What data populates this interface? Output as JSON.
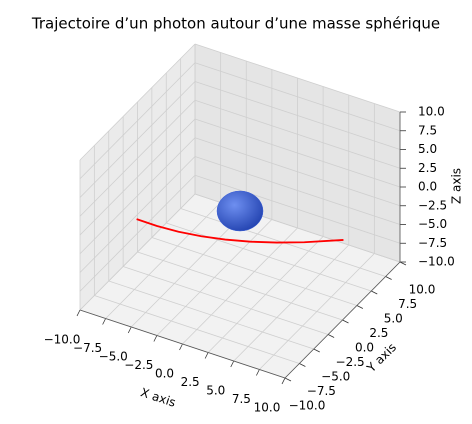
{
  "chart_data": {
    "type": "line3d",
    "title": "Trajectoire d’un photon autour d’une masse sphérique",
    "xlabel": "X axis",
    "ylabel": "Y axis",
    "zlabel": "Z axis",
    "xlim": [
      -10,
      10
    ],
    "ylim": [
      -10,
      10
    ],
    "zlim": [
      -10,
      10
    ],
    "xticks": [
      {
        "value": -10,
        "label": "−10.0"
      },
      {
        "value": -7.5,
        "label": "−7.5"
      },
      {
        "value": -5,
        "label": "−5.0"
      },
      {
        "value": -2.5,
        "label": "−2.5"
      },
      {
        "value": 0,
        "label": "0.0"
      },
      2.5,
      {
        "value": 5,
        "label": "5.0"
      },
      7.5,
      {
        "value": 10,
        "label": "10.0"
      }
    ],
    "yticks": [
      {
        "value": -10,
        "label": "−10.0"
      },
      {
        "value": -7.5,
        "label": "−7.5"
      },
      {
        "value": -5,
        "label": "−5.0"
      },
      {
        "value": -2.5,
        "label": "−2.5"
      },
      {
        "value": 0,
        "label": "0.0"
      },
      2.5,
      {
        "value": 5,
        "label": "5.0"
      },
      7.5,
      {
        "value": 10,
        "label": "10.0"
      }
    ],
    "zticks": [
      {
        "value": -10,
        "label": "−10.0"
      },
      {
        "value": -7.5,
        "label": "−7.5"
      },
      {
        "value": -5,
        "label": "−5.0"
      },
      {
        "value": -2.5,
        "label": "−2.5"
      },
      {
        "value": 0,
        "label": "0.0"
      },
      2.5,
      {
        "value": 5,
        "label": "5.0"
      },
      7.5,
      {
        "value": 10,
        "label": "10.0"
      }
    ],
    "grid": true,
    "sphere": {
      "center": [
        0,
        0,
        0
      ],
      "radius": 2,
      "color": "#3a5fd9"
    },
    "series": [
      {
        "color": "red",
        "x": [
          -7,
          -5,
          -3,
          -1,
          1,
          3,
          5,
          7,
          9.7
        ],
        "y": [
          -5.5,
          -5.52,
          -5.34,
          -4.94,
          -4.34,
          -3.53,
          -2.51,
          -1.29,
          0.7
        ],
        "z": [
          0,
          0,
          0,
          0,
          0,
          0,
          0,
          0,
          0
        ]
      }
    ]
  }
}
